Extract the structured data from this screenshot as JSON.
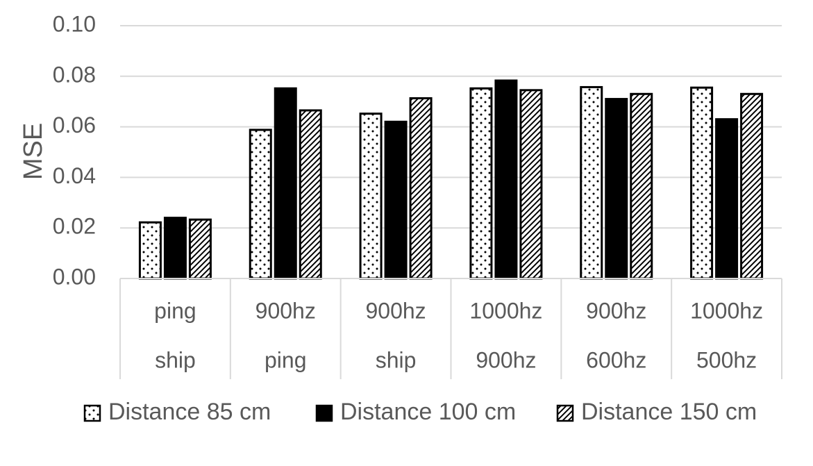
{
  "chart_data": {
    "type": "bar",
    "ylabel": "MSE",
    "ylim": [
      0,
      0.1
    ],
    "yticks": [
      "0.00",
      "0.02",
      "0.04",
      "0.06",
      "0.08",
      "0.10"
    ],
    "grid": true,
    "legend_position": "bottom",
    "categories": [
      {
        "line1": "ping",
        "line2": "ship"
      },
      {
        "line1": "900hz",
        "line2": "ping"
      },
      {
        "line1": "900hz",
        "line2": "ship"
      },
      {
        "line1": "1000hz",
        "line2": "900hz"
      },
      {
        "line1": "900hz",
        "line2": "600hz"
      },
      {
        "line1": "1000hz",
        "line2": "500hz"
      }
    ],
    "series": [
      {
        "name": "Distance 85 cm",
        "pattern": "dots",
        "values": [
          0.0222,
          0.0588,
          0.0652,
          0.0752,
          0.0757,
          0.0755
        ]
      },
      {
        "name": "Distance 100 cm",
        "pattern": "solid",
        "values": [
          0.024,
          0.0752,
          0.062,
          0.0783,
          0.071,
          0.063
        ]
      },
      {
        "name": "Distance 150 cm",
        "pattern": "hatched",
        "values": [
          0.0233,
          0.0665,
          0.0713,
          0.0745,
          0.073,
          0.073
        ]
      }
    ],
    "colors": {
      "grid": "#d9d9d9",
      "text": "#595959",
      "bar_fill": "#000000",
      "bar_stroke": "#000000"
    }
  }
}
